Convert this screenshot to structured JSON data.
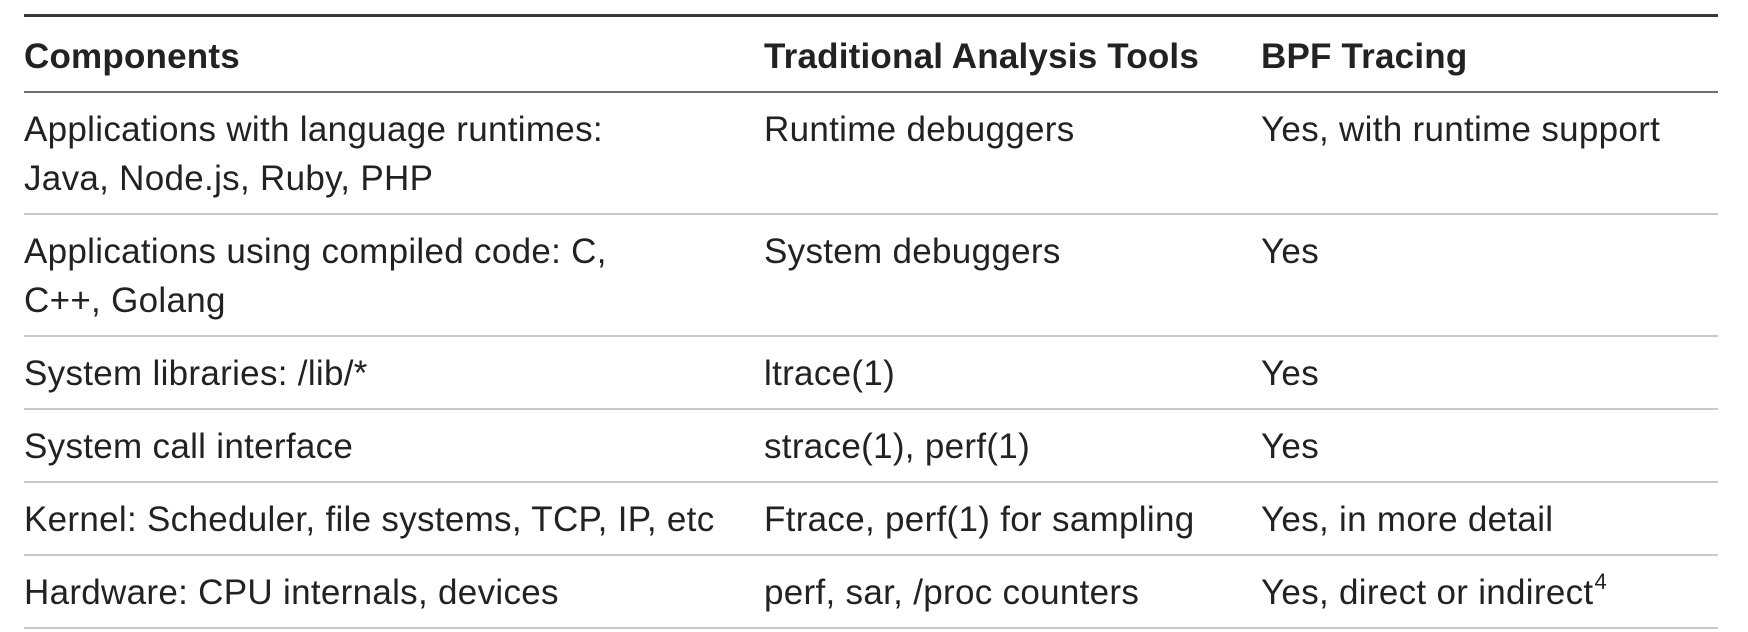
{
  "table": {
    "headers": [
      "Components",
      "Traditional Analysis Tools",
      "BPF Tracing"
    ],
    "rows": [
      {
        "component": "Applications with language runtimes:\nJava, Node.js, Ruby, PHP",
        "traditional": "Runtime debuggers",
        "bpf": "Yes, with runtime support",
        "bpf_sup": ""
      },
      {
        "component": "Applications using compiled code: C,\nC++, Golang",
        "traditional": "System debuggers",
        "bpf": "Yes",
        "bpf_sup": ""
      },
      {
        "component": "System libraries: /lib/*",
        "traditional": "ltrace(1)",
        "bpf": "Yes",
        "bpf_sup": ""
      },
      {
        "component": "System call interface",
        "traditional": "strace(1), perf(1)",
        "bpf": "Yes",
        "bpf_sup": ""
      },
      {
        "component": "Kernel: Scheduler, file systems, TCP, IP, etc",
        "traditional": "Ftrace, perf(1) for sampling",
        "bpf": "Yes, in more detail",
        "bpf_sup": ""
      },
      {
        "component": "Hardware: CPU internals, devices",
        "traditional": "perf, sar, /proc counters",
        "bpf": "Yes, direct or indirect",
        "bpf_sup": "4"
      }
    ]
  }
}
